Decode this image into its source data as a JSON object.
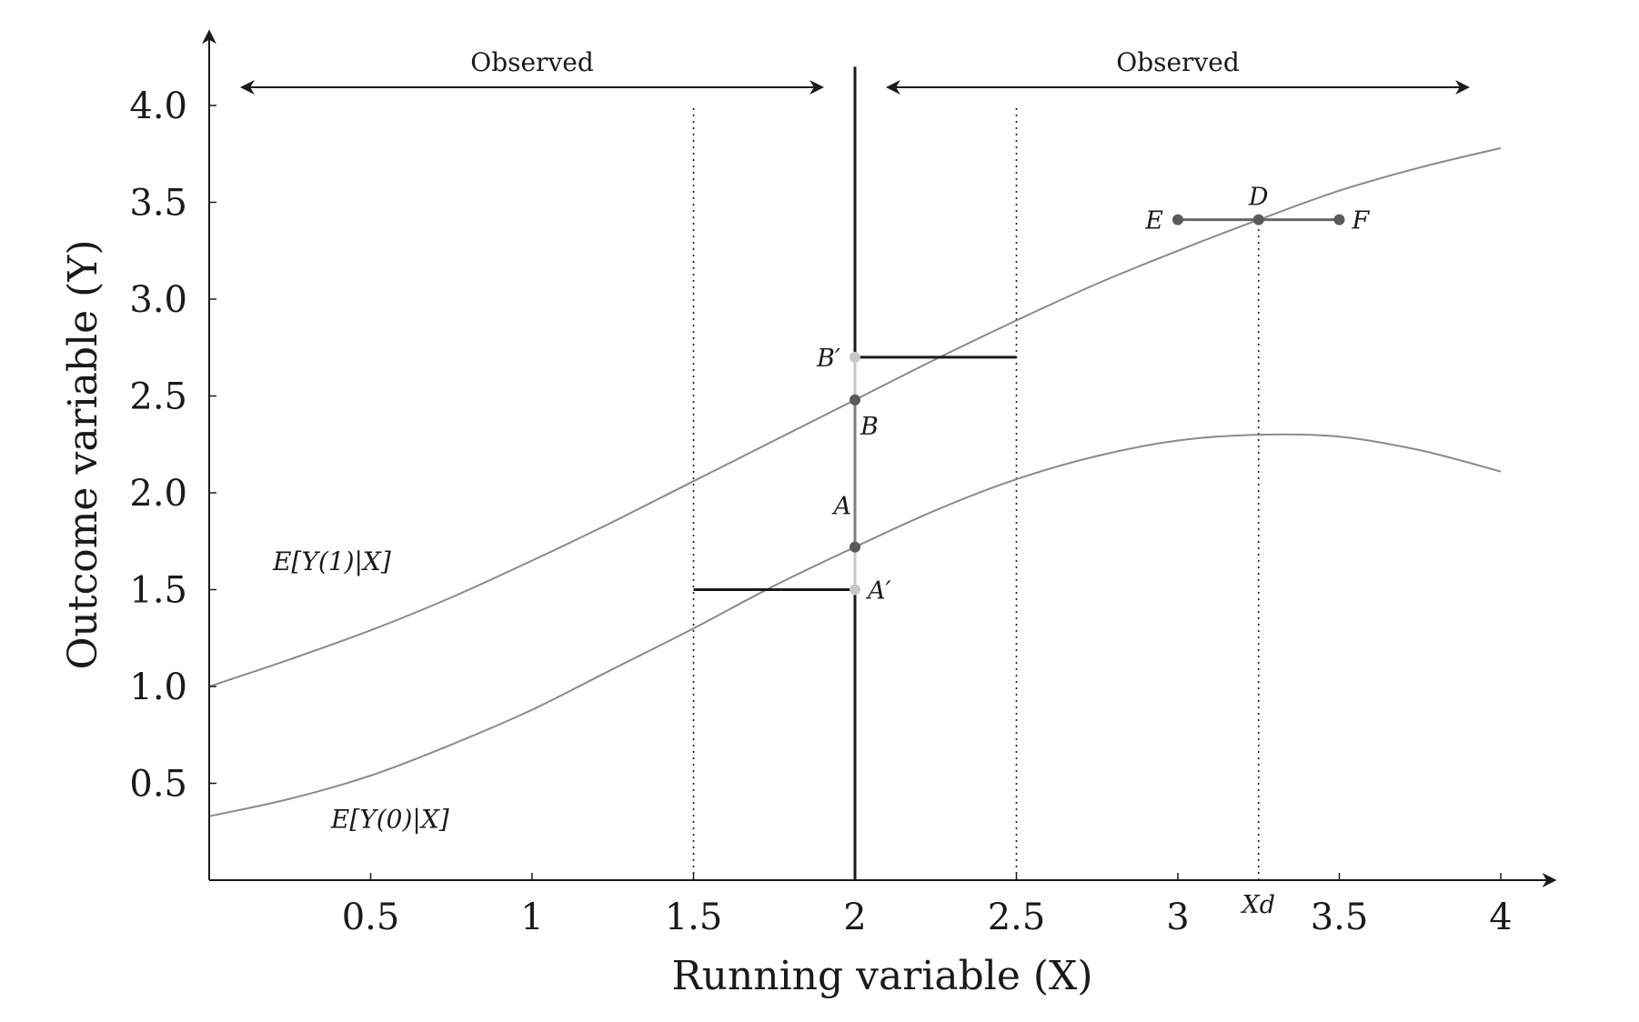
{
  "chart_data": {
    "type": "line",
    "xlabel": "Running variable (X)",
    "ylabel": "Outcome variable (Y)",
    "xlim": [
      0,
      4
    ],
    "ylim": [
      0,
      4.2
    ],
    "x_ticks": [
      0.5,
      1,
      1.5,
      2,
      2.5,
      3,
      3.5,
      4
    ],
    "x_tick_labels": [
      "0.5",
      "1",
      "1.5",
      "2",
      "2.5",
      "3",
      "3.5",
      "4"
    ],
    "y_ticks": [
      0.5,
      1.0,
      1.5,
      2.0,
      2.5,
      3.0,
      3.5,
      4.0
    ],
    "y_tick_labels": [
      "0.5",
      "1.0",
      "1.5",
      "2.0",
      "2.5",
      "3.0",
      "3.5",
      "4.0"
    ],
    "cutoff": 2,
    "observed_regions": [
      {
        "label": "Observed",
        "x_range": [
          0.1,
          1.9
        ]
      },
      {
        "label": "Observed",
        "x_range": [
          2.1,
          3.9
        ]
      }
    ],
    "series": [
      {
        "name": "E[Y(1)|X]",
        "x": [
          0,
          0.25,
          0.5,
          0.75,
          1,
          1.25,
          1.5,
          1.75,
          2,
          2.25,
          2.5,
          2.75,
          3,
          3.25,
          3.5,
          3.75,
          4
        ],
        "y": [
          1.0,
          1.14,
          1.29,
          1.46,
          1.65,
          1.85,
          2.06,
          2.27,
          2.48,
          2.69,
          2.89,
          3.08,
          3.25,
          3.41,
          3.56,
          3.68,
          3.78
        ]
      },
      {
        "name": "E[Y(0)|X]",
        "x": [
          0,
          0.25,
          0.5,
          0.75,
          1,
          1.25,
          1.5,
          1.75,
          2,
          2.25,
          2.5,
          2.75,
          3,
          3.25,
          3.5,
          3.75,
          4
        ],
        "y": [
          0.33,
          0.42,
          0.54,
          0.7,
          0.88,
          1.09,
          1.3,
          1.52,
          1.72,
          1.91,
          2.07,
          2.19,
          2.27,
          2.3,
          2.29,
          2.22,
          2.11
        ]
      }
    ],
    "dotted_lines": [
      {
        "x": 1.5,
        "y_range": [
          0,
          4.0
        ]
      },
      {
        "x": 2.5,
        "y_range": [
          0,
          4.0
        ]
      },
      {
        "x": 3.25,
        "y_range": [
          0,
          3.41
        ]
      }
    ],
    "horizontal_segments": [
      {
        "x_range": [
          1.5,
          2
        ],
        "y": 1.5
      },
      {
        "x_range": [
          2,
          2.5
        ],
        "y": 2.7
      }
    ],
    "vertical_segments": [
      {
        "x": 2,
        "y_range": [
          1.5,
          1.72
        ],
        "color": "#c8c8c8"
      },
      {
        "x": 2,
        "y_range": [
          1.72,
          2.48
        ],
        "color": "#808080"
      },
      {
        "x": 2,
        "y_range": [
          2.48,
          2.7
        ],
        "color": "#c8c8c8"
      },
      {
        "x_range": [
          3,
          3.5
        ],
        "y": 3.41,
        "color": "#666666"
      }
    ],
    "points": [
      {
        "label": "B′",
        "x": 2,
        "y": 2.7,
        "color": "#c8c8c8",
        "label_pos": "left"
      },
      {
        "label": "B",
        "x": 2,
        "y": 2.48,
        "color": "#5a5a5a",
        "label_pos": "below-right"
      },
      {
        "label": "A",
        "x": 2,
        "y": 1.72,
        "color": "#5a5a5a",
        "label_pos": "above-left"
      },
      {
        "label": "A′",
        "x": 2,
        "y": 1.5,
        "color": "#c8c8c8",
        "label_pos": "right"
      },
      {
        "label": "E",
        "x": 3,
        "y": 3.41,
        "color": "#5a5a5a",
        "label_pos": "left"
      },
      {
        "label": "D",
        "x": 3.25,
        "y": 3.41,
        "color": "#5a5a5a",
        "label_pos": "above"
      },
      {
        "label": "F",
        "x": 3.5,
        "y": 3.41,
        "color": "#5a5a5a",
        "label_pos": "right"
      }
    ],
    "annotations": [
      {
        "text": "Xd",
        "x": 3.25,
        "y": 0
      },
      {
        "text": "E[Y(1)|X]",
        "x": 0.38,
        "y": 1.6
      },
      {
        "text": "E[Y(0)|X]",
        "x": 0.56,
        "y": 0.27
      }
    ],
    "curve_color": "#8a8a8a",
    "axis_color": "#1a1a1a"
  }
}
